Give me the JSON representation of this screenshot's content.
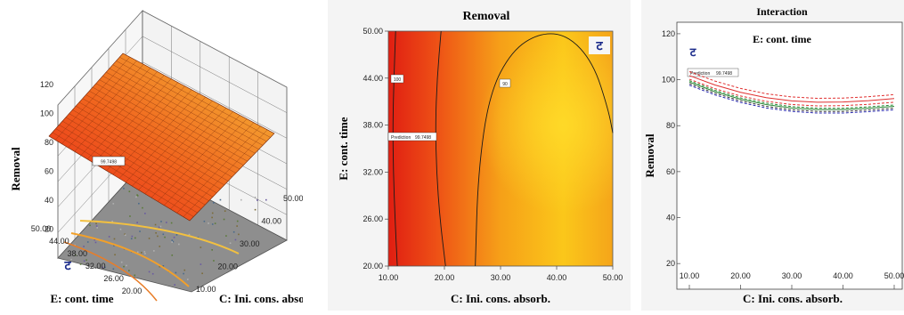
{
  "chart_data": [
    {
      "type": "surface",
      "title": "",
      "zlabel": "Removal",
      "xlabel": "C: Ini. cons. absorb.",
      "ylabel": "E: cont. time",
      "x_ticks": [
        "10.00",
        "20.00",
        "30.00",
        "40.00",
        "50.00"
      ],
      "y_ticks": [
        "50.00",
        "44.00",
        "38.00",
        "32.00",
        "26.00",
        "20.00"
      ],
      "z_ticks": [
        "120",
        "100",
        "80",
        "60",
        "40",
        "20"
      ],
      "xlim": [
        10,
        50
      ],
      "ylim": [
        20,
        50
      ],
      "zlim": [
        0,
        120
      ],
      "flag_label": "99.7498",
      "corner_symbol": "ट",
      "surface": {
        "x": [
          10,
          50
        ],
        "y": [
          20,
          50
        ],
        "z_corners": {
          "x10_y20": 100,
          "x10_y50": 104,
          "x50_y20": 89,
          "x50_y50": 93
        }
      }
    },
    {
      "type": "contour",
      "title": "Removal",
      "xlabel": "C: Ini. cons. absorb.",
      "ylabel": "E: cont. time",
      "x_ticks": [
        "10.00",
        "20.00",
        "30.00",
        "40.00",
        "50.00"
      ],
      "y_ticks": [
        "50.00",
        "44.00",
        "38.00",
        "32.00",
        "26.00",
        "20.00"
      ],
      "xlim": [
        10,
        50
      ],
      "ylim": [
        20,
        50
      ],
      "contour_labels": [
        "100",
        "90"
      ],
      "contours": [
        {
          "level": 100,
          "points": [
            [
              11.6,
              20
            ],
            [
              11.2,
              26
            ],
            [
              10.9,
              32
            ],
            [
              10.8,
              38
            ],
            [
              11.0,
              44
            ],
            [
              11.3,
              50
            ]
          ]
        },
        {
          "level": 95,
          "points": [
            [
              20.2,
              20
            ],
            [
              19.2,
              26
            ],
            [
              18.6,
              32
            ],
            [
              18.4,
              38
            ],
            [
              18.7,
              44
            ],
            [
              19.4,
              50
            ]
          ]
        },
        {
          "level": 90,
          "points": [
            [
              25.5,
              20
            ],
            [
              26.0,
              32
            ],
            [
              28.0,
              42
            ],
            [
              32.0,
              47.5
            ],
            [
              37.0,
              49.8
            ],
            [
              42.0,
              49.5
            ],
            [
              46.5,
              46
            ],
            [
              49.2,
              40
            ],
            [
              50,
              37
            ]
          ]
        }
      ],
      "prediction_label": "Prediction",
      "prediction_value": "99.7498",
      "corner_symbol": "ट"
    },
    {
      "type": "line",
      "title": "Interaction",
      "subtitle": "E: cont. time",
      "xlabel": "C: Ini. cons. absorb.",
      "ylabel": "Removal",
      "x_ticks": [
        "10.00",
        "20.00",
        "30.00",
        "40.00",
        "50.00"
      ],
      "y_ticks": [
        "120",
        "100",
        "80",
        "60",
        "40",
        "20"
      ],
      "xlim": [
        10,
        50
      ],
      "ylim": [
        10,
        125
      ],
      "prediction_label": "Prediction",
      "prediction_value": "99.7498",
      "corner_symbol": "ट",
      "x": [
        10,
        15,
        20,
        25,
        30,
        35,
        40,
        45,
        50
      ],
      "series": [
        {
          "color": "#e03030",
          "dashed": true,
          "values": [
            103.5,
            99.4,
            96.2,
            93.9,
            92.5,
            91.9,
            92.0,
            92.6,
            93.5
          ]
        },
        {
          "color": "#e03030",
          "dashed": false,
          "values": [
            101.8,
            97.7,
            94.5,
            92.2,
            90.8,
            90.2,
            90.3,
            90.9,
            91.8
          ]
        },
        {
          "color": "#e03030",
          "dashed": true,
          "values": [
            100.2,
            96.1,
            92.9,
            90.6,
            89.2,
            88.6,
            88.7,
            89.3,
            90.2
          ]
        },
        {
          "color": "#2e8b3a",
          "dashed": true,
          "values": [
            99.6,
            95.4,
            92.1,
            89.8,
            88.3,
            87.6,
            87.6,
            88.2,
            89.0
          ]
        },
        {
          "color": "#2e8b3a",
          "dashed": false,
          "values": [
            99.0,
            94.8,
            91.5,
            89.2,
            87.7,
            87.0,
            87.0,
            87.6,
            88.4
          ]
        },
        {
          "color": "#3a3a3a",
          "dashed": true,
          "values": [
            98.3,
            94.1,
            90.8,
            88.4,
            86.9,
            86.2,
            86.2,
            86.8,
            87.6
          ]
        },
        {
          "color": "#2a2ab0",
          "dashed": true,
          "values": [
            97.6,
            93.4,
            90.1,
            87.7,
            86.2,
            85.5,
            85.5,
            86.1,
            86.9
          ]
        }
      ]
    }
  ]
}
